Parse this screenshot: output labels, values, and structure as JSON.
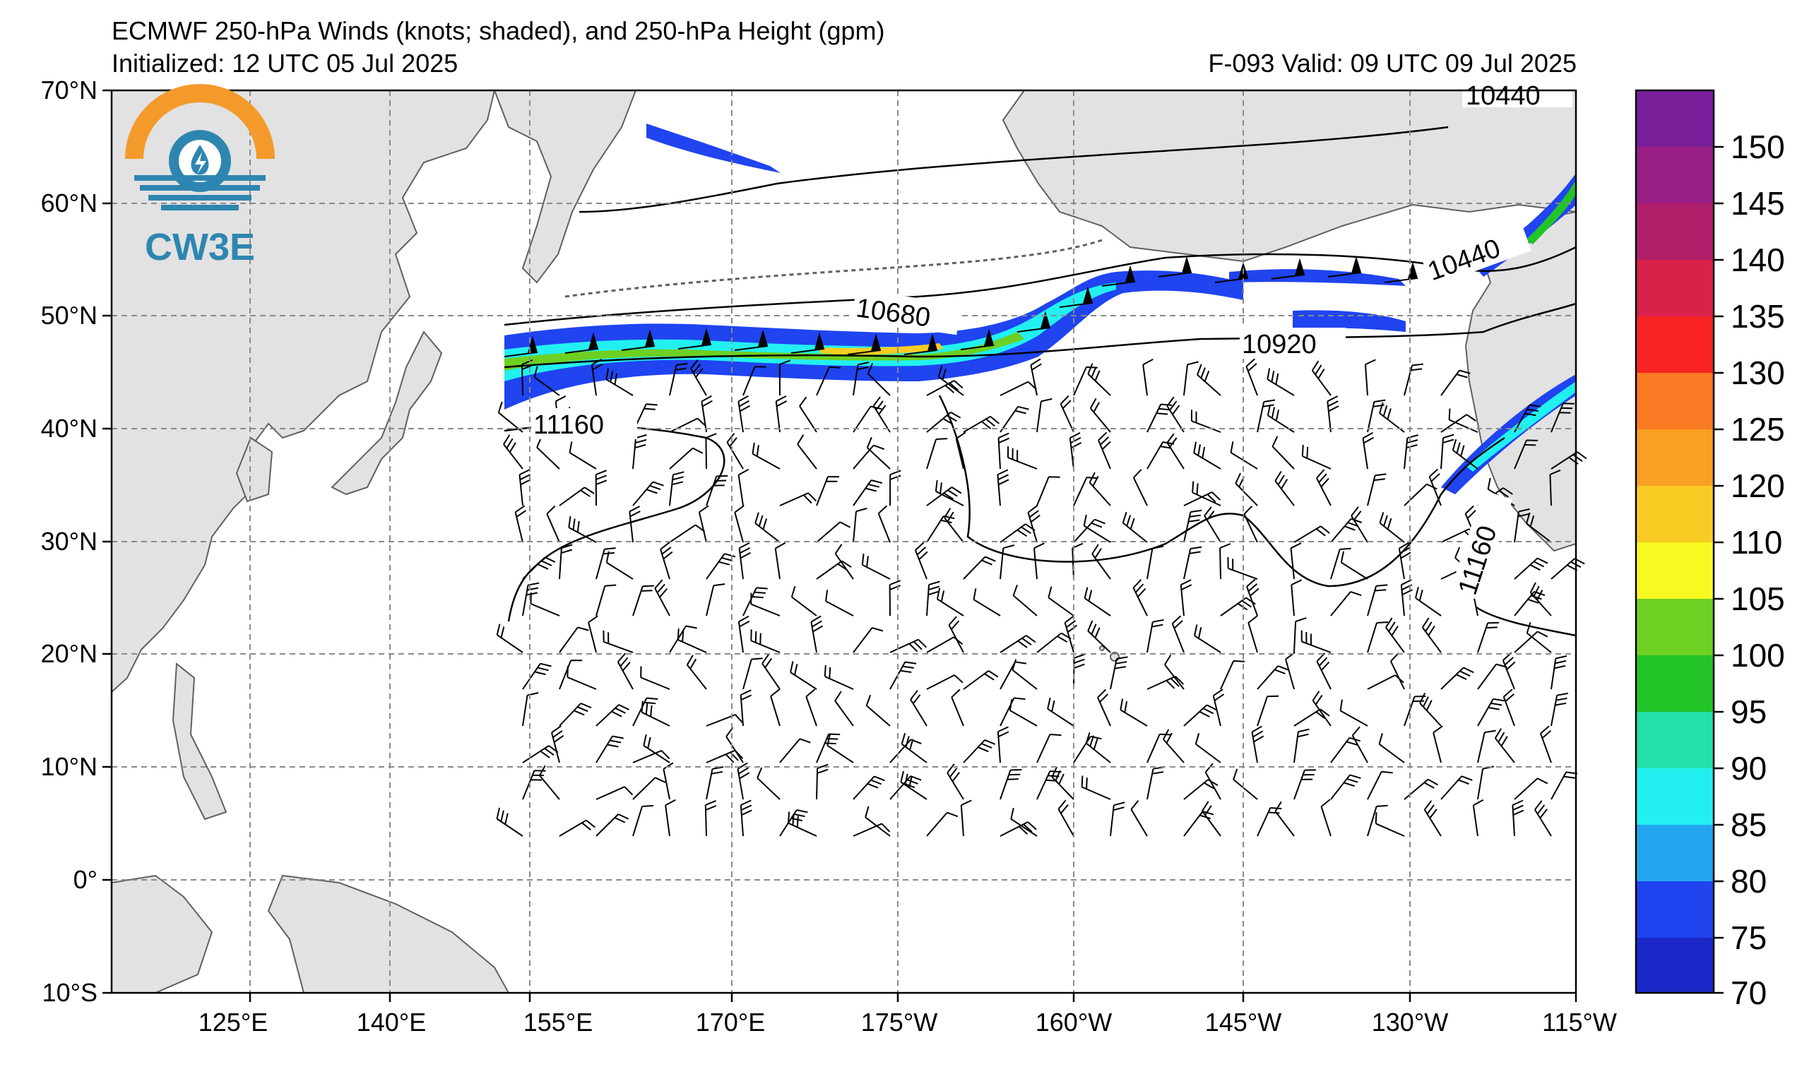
{
  "header": {
    "title": "ECMWF 250-hPa Winds (knots; shaded), and 250-hPa Height (gpm)",
    "initialized": "Initialized: 12 UTC 05 Jul 2025",
    "valid": "F-093  Valid: 09 UTC 09 Jul 2025"
  },
  "logo": {
    "text": "CW3E",
    "ring_color": "#f39a2b",
    "wave_color": "#2e86b0"
  },
  "map": {
    "lon_labels": [
      "125°E",
      "140°E",
      "155°E",
      "170°E",
      "175°W",
      "160°W",
      "145°W",
      "130°W",
      "115°W"
    ],
    "lat_labels": [
      "70°N",
      "60°N",
      "50°N",
      "40°N",
      "30°N",
      "20°N",
      "10°N",
      "0°",
      "10°S"
    ],
    "contour_labels": [
      "10440",
      "10680",
      "10920",
      "11160",
      "10440",
      "11160"
    ]
  },
  "colorbar": {
    "ticks": [
      "70",
      "75",
      "80",
      "85",
      "90",
      "95",
      "100",
      "105",
      "110",
      "120",
      "125",
      "130",
      "135",
      "140",
      "145",
      "150"
    ],
    "colors": [
      "#1a28c8",
      "#1f44f0",
      "#22a6f0",
      "#22f0f0",
      "#22e0a8",
      "#22c428",
      "#6ed022",
      "#f8f822",
      "#f8cc22",
      "#f8a022",
      "#f87a22",
      "#f82222",
      "#d8224a",
      "#b01e6a",
      "#981e86",
      "#7a1e9a"
    ]
  },
  "colors": {
    "land": "#e2e2e2",
    "coast": "#606060",
    "grid": "#8a8a8a",
    "jet_low": "#1f44f0",
    "jet_core": "#22c428"
  }
}
